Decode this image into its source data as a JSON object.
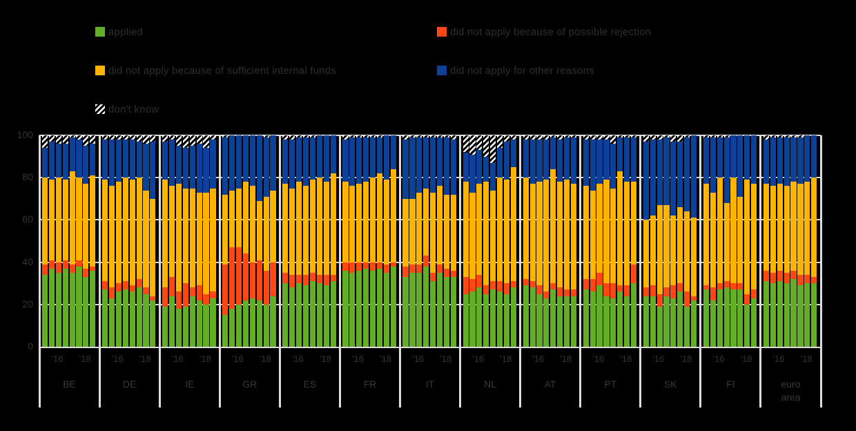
{
  "legend": {
    "items": [
      {
        "label": "applied",
        "color": "#62AE26",
        "swatch": "solid"
      },
      {
        "label": "did not apply because of possible rejection",
        "color": "#FF4713",
        "swatch": "solid"
      },
      {
        "label": "did not apply because of sufficient internal funds",
        "color": "#FFB400",
        "swatch": "solid"
      },
      {
        "label": "did not apply for other reasons",
        "color": "#0D4097",
        "swatch": "solid"
      },
      {
        "label": "don't know",
        "color": "hatch",
        "swatch": "hatch"
      }
    ]
  },
  "axes": {
    "y_ticks": [
      0,
      20,
      40,
      60,
      80,
      100
    ],
    "x_tick_labels_per_group": [
      "'16",
      "'18"
    ]
  },
  "chart_data": {
    "type": "bar",
    "subtype": "100%-stacked-bar",
    "title": "",
    "ylim": [
      0,
      100
    ],
    "grid": "horizontal",
    "legend_position": "top",
    "segment_order": [
      "applied",
      "did not apply because of possible rejection",
      "did not apply because of sufficient internal funds",
      "did not apply for other reasons",
      "don't know"
    ],
    "bars_per_group": 8,
    "x_tick_labels_per_group": [
      "'16",
      "'18"
    ],
    "categories": [
      "BE",
      "DE",
      "IE",
      "GR",
      "ES",
      "FR",
      "IT",
      "NL",
      "AT",
      "PT",
      "SK",
      "FI",
      "euro area"
    ],
    "groups": [
      {
        "label": "BE",
        "bars": [
          [
            34,
            5,
            41,
            14,
            6
          ],
          [
            37,
            4,
            38,
            18,
            3
          ],
          [
            35,
            5,
            40,
            16,
            4
          ],
          [
            37,
            4,
            38,
            17,
            4
          ],
          [
            35,
            4,
            44,
            16,
            1
          ],
          [
            38,
            3,
            39,
            18,
            2
          ],
          [
            33,
            4,
            40,
            18,
            5
          ],
          [
            36,
            2,
            43,
            15,
            4
          ]
        ]
      },
      {
        "label": "DE",
        "bars": [
          [
            27,
            4,
            48,
            19,
            2
          ],
          [
            23,
            5,
            48,
            22,
            2
          ],
          [
            26,
            4,
            48,
            20,
            2
          ],
          [
            27,
            4,
            49,
            18,
            2
          ],
          [
            26,
            3,
            50,
            19,
            2
          ],
          [
            28,
            4,
            48,
            17,
            3
          ],
          [
            25,
            3,
            46,
            22,
            4
          ],
          [
            22,
            2,
            46,
            27,
            3
          ]
        ]
      },
      {
        "label": "IE",
        "bars": [
          [
            19,
            9,
            51,
            18,
            3
          ],
          [
            24,
            9,
            43,
            22,
            2
          ],
          [
            18,
            8,
            51,
            18,
            5
          ],
          [
            19,
            11,
            45,
            19,
            6
          ],
          [
            24,
            4,
            47,
            20,
            5
          ],
          [
            22,
            7,
            44,
            23,
            4
          ],
          [
            20,
            5,
            48,
            21,
            6
          ],
          [
            23,
            3,
            49,
            23,
            2
          ]
        ]
      },
      {
        "label": "GR",
        "bars": [
          [
            15,
            24,
            33,
            27,
            1
          ],
          [
            18,
            29,
            27,
            26,
            0
          ],
          [
            20,
            27,
            28,
            25,
            0
          ],
          [
            22,
            22,
            34,
            22,
            0
          ],
          [
            23,
            17,
            36,
            24,
            0
          ],
          [
            22,
            19,
            28,
            31,
            0
          ],
          [
            20,
            16,
            35,
            28,
            1
          ],
          [
            24,
            16,
            34,
            26,
            0
          ]
        ]
      },
      {
        "label": "ES",
        "bars": [
          [
            30,
            5,
            42,
            21,
            2
          ],
          [
            28,
            6,
            41,
            23,
            2
          ],
          [
            30,
            4,
            44,
            21,
            1
          ],
          [
            29,
            5,
            42,
            23,
            1
          ],
          [
            31,
            4,
            44,
            20,
            1
          ],
          [
            30,
            4,
            46,
            20,
            0
          ],
          [
            29,
            5,
            44,
            22,
            0
          ],
          [
            31,
            3,
            48,
            18,
            0
          ]
        ]
      },
      {
        "label": "FR",
        "bars": [
          [
            36,
            4,
            38,
            20,
            2
          ],
          [
            35,
            5,
            36,
            23,
            1
          ],
          [
            36,
            4,
            37,
            22,
            1
          ],
          [
            37,
            3,
            38,
            21,
            1
          ],
          [
            36,
            4,
            40,
            19,
            1
          ],
          [
            37,
            3,
            42,
            17,
            1
          ],
          [
            35,
            4,
            40,
            21,
            0
          ],
          [
            38,
            2,
            44,
            16,
            0
          ]
        ]
      },
      {
        "label": "IT",
        "bars": [
          [
            33,
            5,
            32,
            28,
            2
          ],
          [
            35,
            4,
            31,
            29,
            1
          ],
          [
            35,
            4,
            34,
            26,
            1
          ],
          [
            38,
            5,
            32,
            24,
            1
          ],
          [
            31,
            4,
            38,
            26,
            1
          ],
          [
            35,
            4,
            37,
            23,
            1
          ],
          [
            33,
            4,
            35,
            27,
            1
          ],
          [
            33,
            3,
            36,
            26,
            2
          ]
        ]
      },
      {
        "label": "NL",
        "bars": [
          [
            25,
            8,
            45,
            14,
            8
          ],
          [
            26,
            6,
            41,
            18,
            9
          ],
          [
            28,
            6,
            43,
            16,
            7
          ],
          [
            25,
            4,
            49,
            12,
            10
          ],
          [
            27,
            4,
            43,
            13,
            13
          ],
          [
            26,
            5,
            49,
            14,
            6
          ],
          [
            25,
            5,
            49,
            18,
            3
          ],
          [
            28,
            3,
            54,
            13,
            2
          ]
        ]
      },
      {
        "label": "AT",
        "bars": [
          [
            29,
            3,
            48,
            18,
            2
          ],
          [
            28,
            3,
            46,
            21,
            2
          ],
          [
            25,
            4,
            49,
            20,
            2
          ],
          [
            23,
            3,
            53,
            19,
            2
          ],
          [
            27,
            3,
            54,
            15,
            1
          ],
          [
            24,
            4,
            50,
            20,
            2
          ],
          [
            24,
            3,
            52,
            20,
            1
          ],
          [
            24,
            3,
            50,
            22,
            1
          ]
        ]
      },
      {
        "label": "PT",
        "bars": [
          [
            27,
            5,
            44,
            22,
            2
          ],
          [
            26,
            6,
            42,
            24,
            2
          ],
          [
            29,
            6,
            42,
            21,
            2
          ],
          [
            24,
            6,
            49,
            19,
            2
          ],
          [
            23,
            7,
            45,
            21,
            4
          ],
          [
            26,
            3,
            54,
            16,
            1
          ],
          [
            24,
            5,
            49,
            21,
            1
          ],
          [
            30,
            9,
            39,
            21,
            1
          ]
        ]
      },
      {
        "label": "SK",
        "bars": [
          [
            24,
            4,
            32,
            37,
            3
          ],
          [
            24,
            5,
            33,
            36,
            2
          ],
          [
            19,
            6,
            42,
            31,
            2
          ],
          [
            24,
            4,
            39,
            32,
            1
          ],
          [
            23,
            6,
            33,
            35,
            3
          ],
          [
            26,
            4,
            36,
            31,
            3
          ],
          [
            19,
            7,
            38,
            35,
            1
          ],
          [
            22,
            2,
            37,
            39,
            0
          ]
        ]
      },
      {
        "label": "FI",
        "bars": [
          [
            27,
            2,
            48,
            22,
            1
          ],
          [
            22,
            6,
            45,
            26,
            1
          ],
          [
            27,
            3,
            50,
            19,
            1
          ],
          [
            28,
            3,
            37,
            31,
            1
          ],
          [
            27,
            3,
            50,
            20,
            0
          ],
          [
            27,
            3,
            41,
            29,
            0
          ],
          [
            20,
            5,
            54,
            21,
            0
          ],
          [
            23,
            4,
            50,
            23,
            0
          ]
        ]
      },
      {
        "label": "euro area",
        "bars": [
          [
            31,
            5,
            41,
            21,
            2
          ],
          [
            30,
            5,
            41,
            23,
            1
          ],
          [
            31,
            5,
            41,
            22,
            1
          ],
          [
            30,
            5,
            41,
            23,
            1
          ],
          [
            32,
            4,
            42,
            21,
            1
          ],
          [
            29,
            5,
            43,
            22,
            1
          ],
          [
            30,
            4,
            44,
            22,
            0
          ],
          [
            30,
            3,
            47,
            20,
            0
          ]
        ]
      }
    ]
  }
}
